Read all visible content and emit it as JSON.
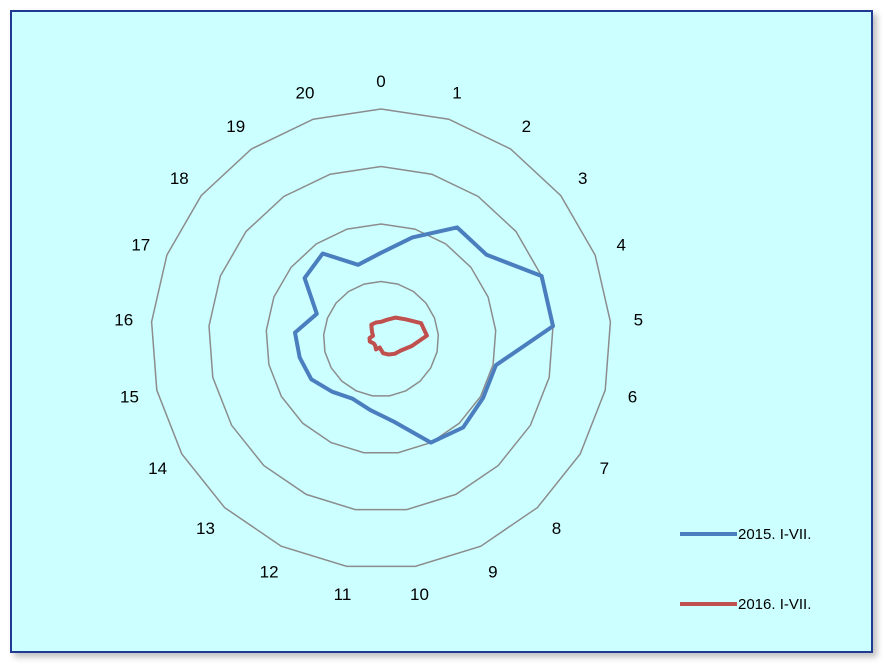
{
  "chart_data": {
    "type": "radar",
    "categories": [
      "0",
      "1",
      "2",
      "3",
      "4",
      "5",
      "6",
      "7",
      "8",
      "9",
      "10",
      "11",
      "12",
      "13",
      "14",
      "15",
      "16",
      "17",
      "18",
      "19",
      "20"
    ],
    "rmax": 4,
    "rings": [
      1,
      2,
      3,
      4
    ],
    "grid": true,
    "legend_position": "right",
    "series": [
      {
        "name": "2015. I-VII.",
        "color": "#4a7ebf",
        "values": [
          1.5,
          1.85,
          2.35,
          2.35,
          3.0,
          3.0,
          2.05,
          2.05,
          2.1,
          2.0,
          1.45,
          1.25,
          1.15,
          1.25,
          1.4,
          1.45,
          1.5,
          1.2,
          1.7,
          1.8,
          1.35
        ]
      },
      {
        "name": "2016. I-VII.",
        "color": "#c0504d",
        "values": [
          0.3,
          0.35,
          0.45,
          0.55,
          0.75,
          0.8,
          0.55,
          0.4,
          0.35,
          0.3,
          0.25,
          0.15,
          0.2,
          0.15,
          0.15,
          0.2,
          0.2,
          0.15,
          0.2,
          0.3,
          0.3
        ]
      }
    ]
  }
}
